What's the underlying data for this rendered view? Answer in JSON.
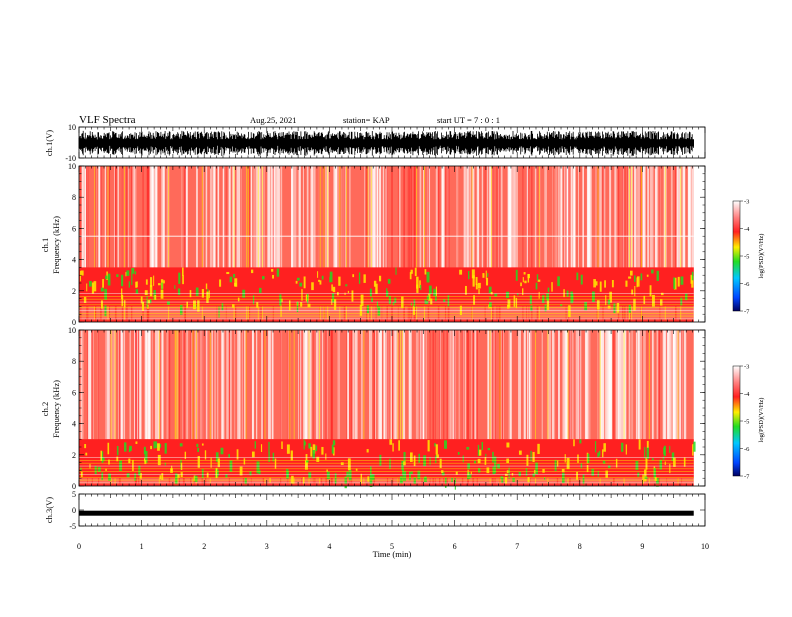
{
  "header": {
    "title": "VLF Spectra",
    "date": "Aug.25, 2021",
    "station": "station= KAP",
    "start_ut": "start  UT =   7 : 0  : 1"
  },
  "colors": {
    "white": "#ffffff",
    "red": "#ff2020",
    "yellow": "#ffee00",
    "green": "#22dd22",
    "blue": "#0044ff",
    "navy": "#000060",
    "trace": "#000000"
  },
  "chart_data": [
    {
      "type": "line",
      "panel": "ch1-waveform",
      "ylabel": "ch.1(V)",
      "ylim": [
        -10,
        10
      ],
      "yticks": [
        "10",
        "-10"
      ],
      "xlim": [
        0,
        10
      ],
      "description_values": {
        "amplitude_range_V": [
          -8,
          8
        ]
      }
    },
    {
      "type": "heatmap",
      "panel": "ch1-spectrogram",
      "ylabel": [
        "ch.1",
        "Frequency  (kHz)"
      ],
      "ylim": [
        0,
        10
      ],
      "yticks": [
        "0",
        "2",
        "4",
        "6",
        "8",
        "10"
      ],
      "xlim": [
        0,
        9.82
      ],
      "colorbar": {
        "label": "log(PSD)(V²/Hz)",
        "range": [
          -7,
          -3
        ],
        "ticks": [
          "-3",
          "-4",
          "-5",
          "-6",
          "-7"
        ]
      },
      "bands_kHz": {
        "enhanced": [
          1.0,
          3.5
        ],
        "line": 5.5
      }
    },
    {
      "type": "heatmap",
      "panel": "ch2-spectrogram",
      "ylabel": [
        "ch.2",
        "Frequency  (kHz)"
      ],
      "ylim": [
        0,
        10
      ],
      "yticks": [
        "0",
        "2",
        "4",
        "6",
        "8",
        "10"
      ],
      "xlim": [
        0,
        9.82
      ],
      "colorbar": {
        "label": "log(PSD)(V²/Hz)",
        "range": [
          -7,
          -3
        ],
        "ticks": [
          "-3",
          "-4",
          "-5",
          "-6",
          "-7"
        ]
      },
      "bands_kHz": {
        "enhanced": [
          0.5,
          3.0
        ]
      }
    },
    {
      "type": "line",
      "panel": "ch3-waveform",
      "ylabel": "ch.3(V)",
      "ylim": [
        -5,
        5
      ],
      "yticks": [
        "5",
        "0",
        "-5"
      ],
      "xlim": [
        0,
        10
      ],
      "description_values": {
        "level_V": -1.0
      }
    }
  ],
  "x_axis": {
    "label": "Time  (min)",
    "ticks": [
      "0",
      "1",
      "2",
      "3",
      "4",
      "5",
      "6",
      "7",
      "8",
      "9",
      "10"
    ]
  }
}
